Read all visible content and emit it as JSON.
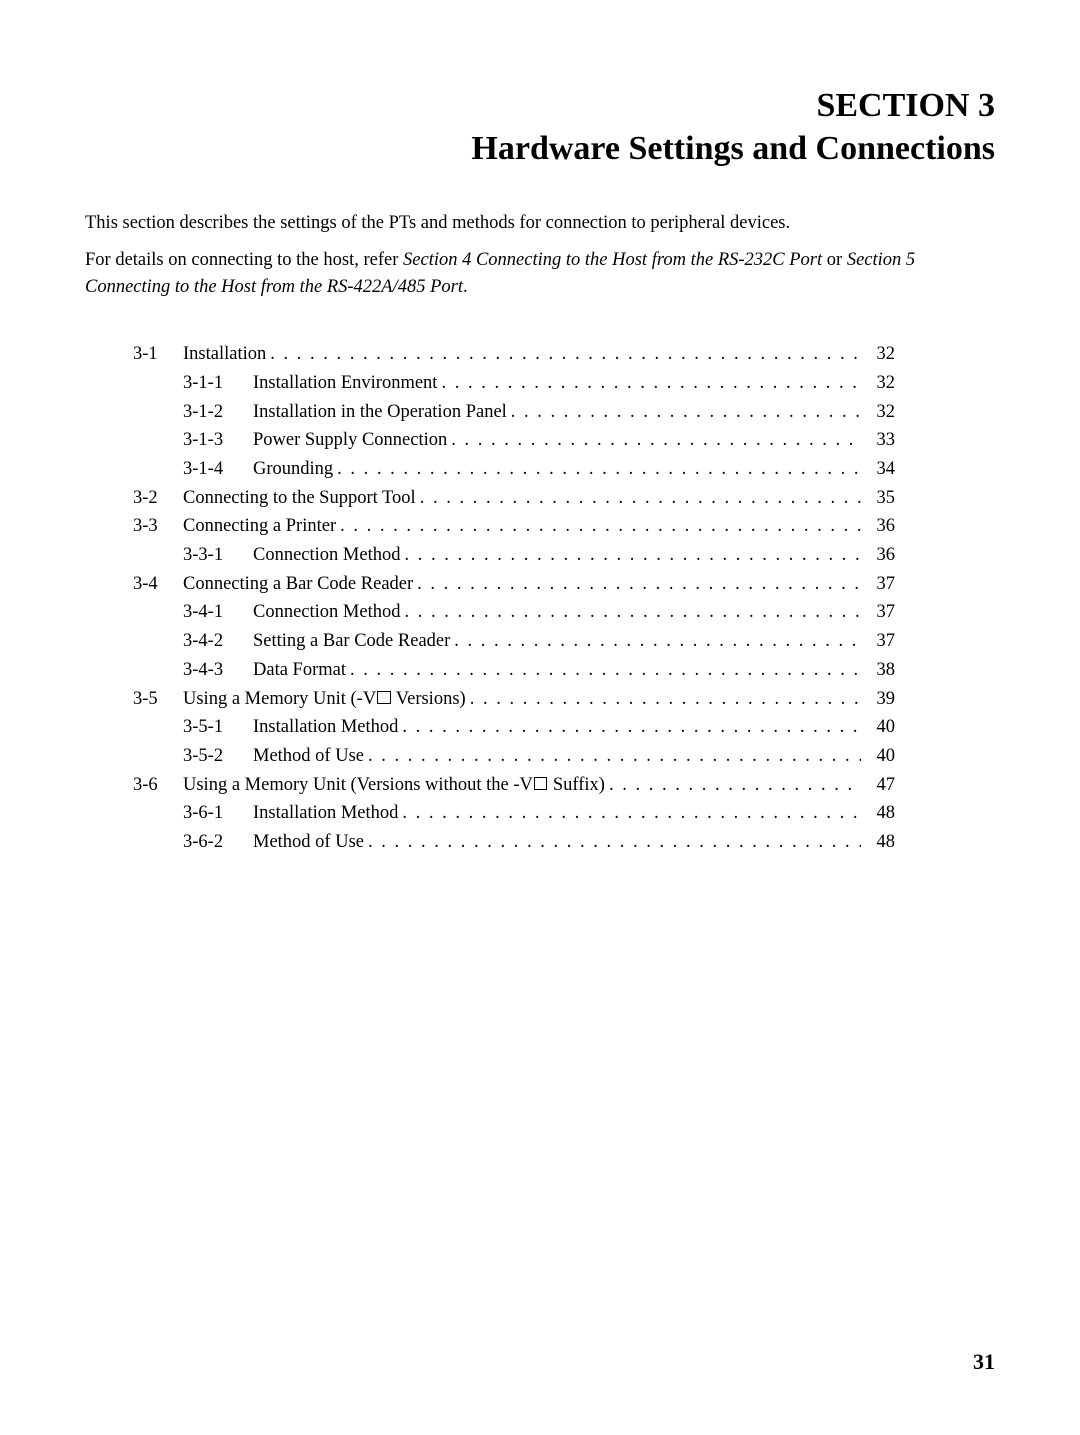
{
  "heading": {
    "line1": "SECTION 3",
    "line2": "Hardware Settings and Connections"
  },
  "intro1": "This section describes the settings of the PTs and methods for connection to peripheral devices.",
  "intro2": {
    "part1": "For details on connecting to the host, refer ",
    "italic1": "Section 4 Connecting to the Host from the RS-232C Port",
    "part2": " or ",
    "italic2": "Section 5 Connecting to the Host from the RS-422A/485 Port",
    "part3": "."
  },
  "toc": [
    {
      "level": 1,
      "num": "3-1",
      "title": "Installation",
      "page": "32"
    },
    {
      "level": 2,
      "num": "3-1-1",
      "title": "Installation Environment",
      "page": "32"
    },
    {
      "level": 2,
      "num": "3-1-2",
      "title": "Installation in the Operation Panel",
      "page": "32"
    },
    {
      "level": 2,
      "num": "3-1-3",
      "title": "Power Supply Connection",
      "page": "33"
    },
    {
      "level": 2,
      "num": "3-1-4",
      "title": "Grounding",
      "page": "34"
    },
    {
      "level": 1,
      "num": "3-2",
      "title": "Connecting to the Support Tool",
      "page": "35"
    },
    {
      "level": 1,
      "num": "3-3",
      "title": "Connecting a Printer",
      "page": "36"
    },
    {
      "level": 2,
      "num": "3-3-1",
      "title": "Connection Method",
      "page": "36"
    },
    {
      "level": 1,
      "num": "3-4",
      "title": "Connecting a Bar Code Reader",
      "page": "37"
    },
    {
      "level": 2,
      "num": "3-4-1",
      "title": "Connection Method",
      "page": "37"
    },
    {
      "level": 2,
      "num": "3-4-2",
      "title": "Setting a Bar Code Reader",
      "page": "37"
    },
    {
      "level": 2,
      "num": "3-4-3",
      "title": "Data Format",
      "page": "38"
    },
    {
      "level": 1,
      "num": "3-5",
      "title_html": "Using a Memory Unit (-V<span class=\"square-glyph\"></span> Versions)",
      "page": "39"
    },
    {
      "level": 2,
      "num": "3-5-1",
      "title": "Installation Method",
      "page": "40"
    },
    {
      "level": 2,
      "num": "3-5-2",
      "title": "Method of Use",
      "page": "40"
    },
    {
      "level": 1,
      "num": "3-6",
      "title_html": "Using a Memory Unit (Versions without the -V<span class=\"square-glyph\"></span> Suffix)",
      "page": "47"
    },
    {
      "level": 2,
      "num": "3-6-1",
      "title": "Installation Method",
      "page": "48"
    },
    {
      "level": 2,
      "num": "3-6-2",
      "title": "Method of Use",
      "page": "48"
    }
  ],
  "pageNumber": "31"
}
